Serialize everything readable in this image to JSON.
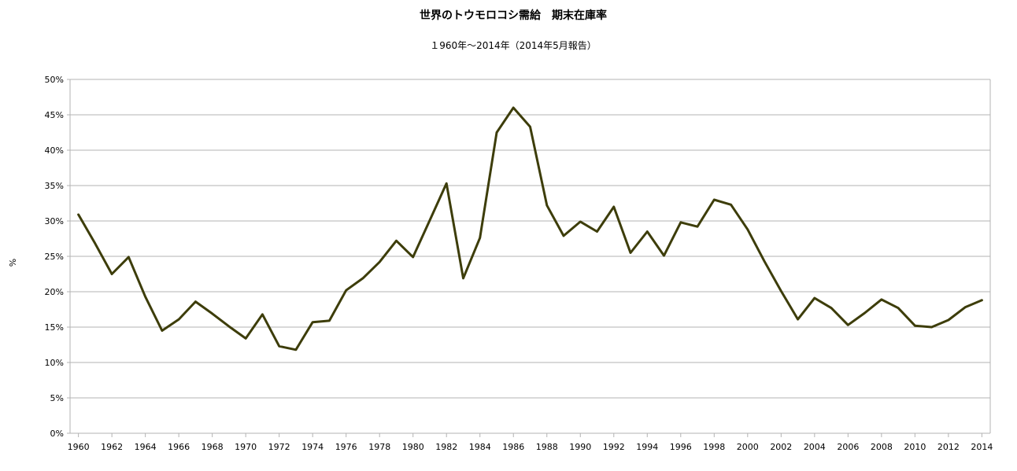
{
  "chart_data": {
    "type": "line",
    "title": "世界のトウモロコシ需給　期末在庫率",
    "subtitle": "１960年～2014年（2014年5月報告）",
    "xlabel": "",
    "ylabel": "%",
    "ylim": [
      0,
      50
    ],
    "y_ticks": [
      "0%",
      "5%",
      "10%",
      "15%",
      "20%",
      "25%",
      "30%",
      "35%",
      "40%",
      "45%",
      "50%"
    ],
    "x_ticks": [
      "1960",
      "1962",
      "1964",
      "1966",
      "1968",
      "1970",
      "1972",
      "1974",
      "1976",
      "1978",
      "1980",
      "1982",
      "1984",
      "1986",
      "1988",
      "1990",
      "1992",
      "1994",
      "1996",
      "1998",
      "2000",
      "2002",
      "2004",
      "2006",
      "2008",
      "2010",
      "2012",
      "2014"
    ],
    "grid": "horizontal",
    "line_color": "#3d3d0a",
    "x": [
      1960,
      1961,
      1962,
      1963,
      1964,
      1965,
      1966,
      1967,
      1968,
      1969,
      1970,
      1971,
      1972,
      1973,
      1974,
      1975,
      1976,
      1977,
      1978,
      1979,
      1980,
      1981,
      1982,
      1983,
      1984,
      1985,
      1986,
      1987,
      1988,
      1989,
      1990,
      1991,
      1992,
      1993,
      1994,
      1995,
      1996,
      1997,
      1998,
      1999,
      2000,
      2001,
      2002,
      2003,
      2004,
      2005,
      2006,
      2007,
      2008,
      2009,
      2010,
      2011,
      2012,
      2013,
      2014
    ],
    "series": [
      {
        "values": [
          30.9,
          26.8,
          22.5,
          24.9,
          19.3,
          14.5,
          16.1,
          18.6,
          16.9,
          15.1,
          13.4,
          16.8,
          12.3,
          11.8,
          15.7,
          15.9,
          20.2,
          21.9,
          24.2,
          27.2,
          24.9,
          30.1,
          35.3,
          21.9,
          27.6,
          42.5,
          46.0,
          43.3,
          32.2,
          27.9,
          29.9,
          28.5,
          32.0,
          25.5,
          28.5,
          25.1,
          29.8,
          29.2,
          33.0,
          32.3,
          28.8,
          24.3,
          20.1,
          16.1,
          19.1,
          17.7,
          15.3,
          17.0,
          18.9,
          17.7,
          15.2,
          15.0,
          16.0,
          17.8,
          18.8
        ]
      }
    ]
  }
}
